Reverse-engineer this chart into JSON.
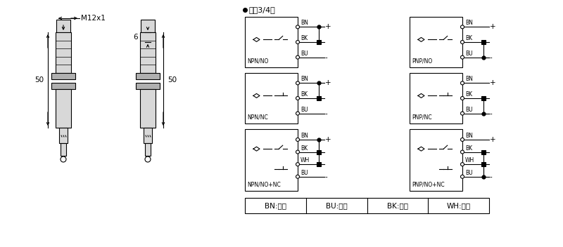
{
  "bg_color": "#ffffff",
  "dim_label_M12": "M12x1",
  "dim_50_left": "50",
  "dim_50_right": "50",
  "dim_6": "6",
  "dc_label": "直浑3/4线",
  "npn_no": "NPN/NO",
  "npn_nc": "NPN/NC",
  "npn_nonc": "NPN/NO+NC",
  "pnp_no": "PNP/NO",
  "pnp_nc": "PNP/NC",
  "pnp_nonc": "PNP/NO+NC",
  "legend_BN": "BN:棕色",
  "legend_BU": "BU:兰色",
  "legend_BK": "BK:黑色",
  "legend_WH": "WH:白色",
  "sensor_fill": "#d8d8d8",
  "sensor_dark": "#b0b0b0"
}
